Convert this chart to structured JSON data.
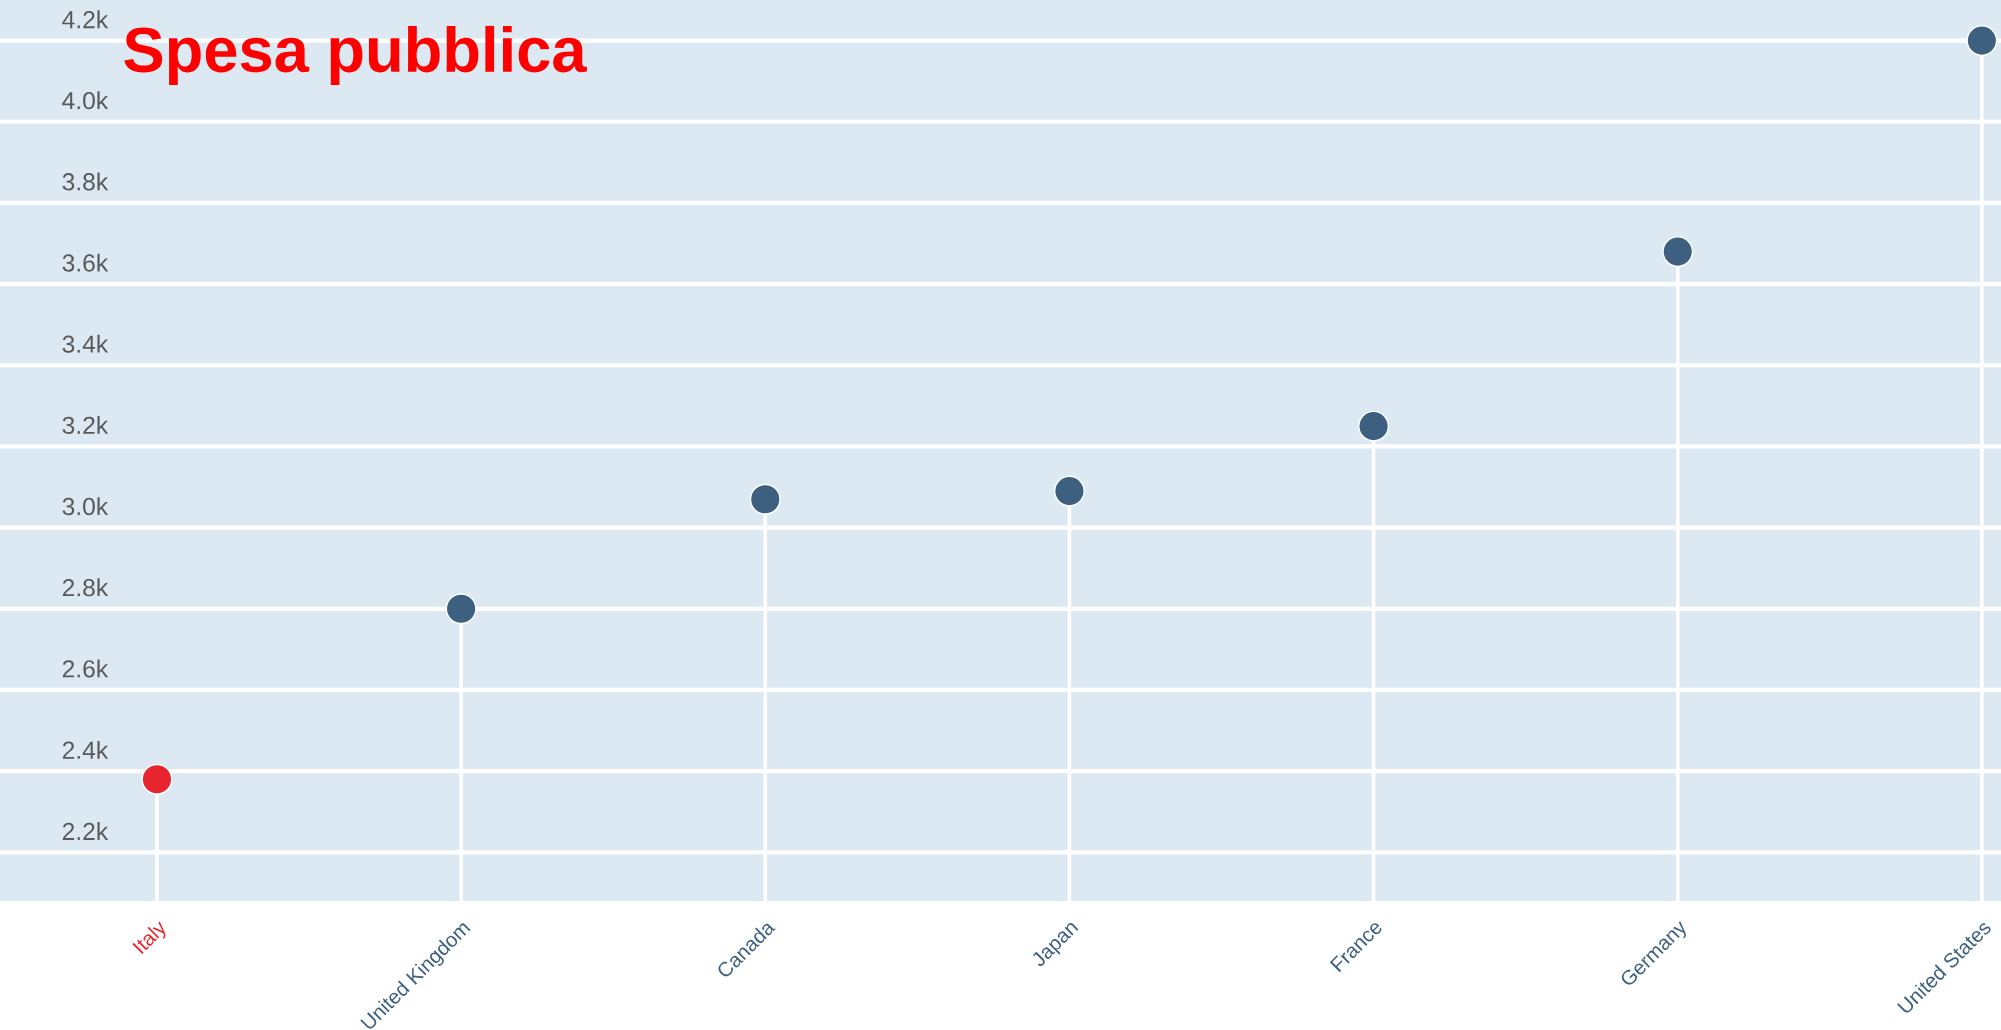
{
  "chart_data": {
    "type": "lollipop",
    "title": "Spesa pubblica",
    "categories": [
      "Italy",
      "United Kingdom",
      "Canada",
      "Japan",
      "France",
      "Germany",
      "United States"
    ],
    "values": [
      2380,
      2800,
      3070,
      3090,
      3250,
      3680,
      4200
    ],
    "colors": [
      "#e8252f",
      "#3d6080",
      "#3d6080",
      "#3d6080",
      "#3d6080",
      "#3d6080",
      "#3d6080"
    ],
    "ylim": [
      2080,
      4300
    ],
    "yticks": [
      {
        "value": 2200,
        "label": "2.2k"
      },
      {
        "value": 2400,
        "label": "2.4k"
      },
      {
        "value": 2600,
        "label": "2.6k"
      },
      {
        "value": 2800,
        "label": "2.8k"
      },
      {
        "value": 3000,
        "label": "3.0k"
      },
      {
        "value": 3200,
        "label": "3.2k"
      },
      {
        "value": 3400,
        "label": "3.4k"
      },
      {
        "value": 3600,
        "label": "3.6k"
      },
      {
        "value": 3800,
        "label": "3.8k"
      },
      {
        "value": 4000,
        "label": "4.0k"
      },
      {
        "value": 4200,
        "label": "4.2k"
      }
    ],
    "grid": "y",
    "marker": "circle"
  }
}
